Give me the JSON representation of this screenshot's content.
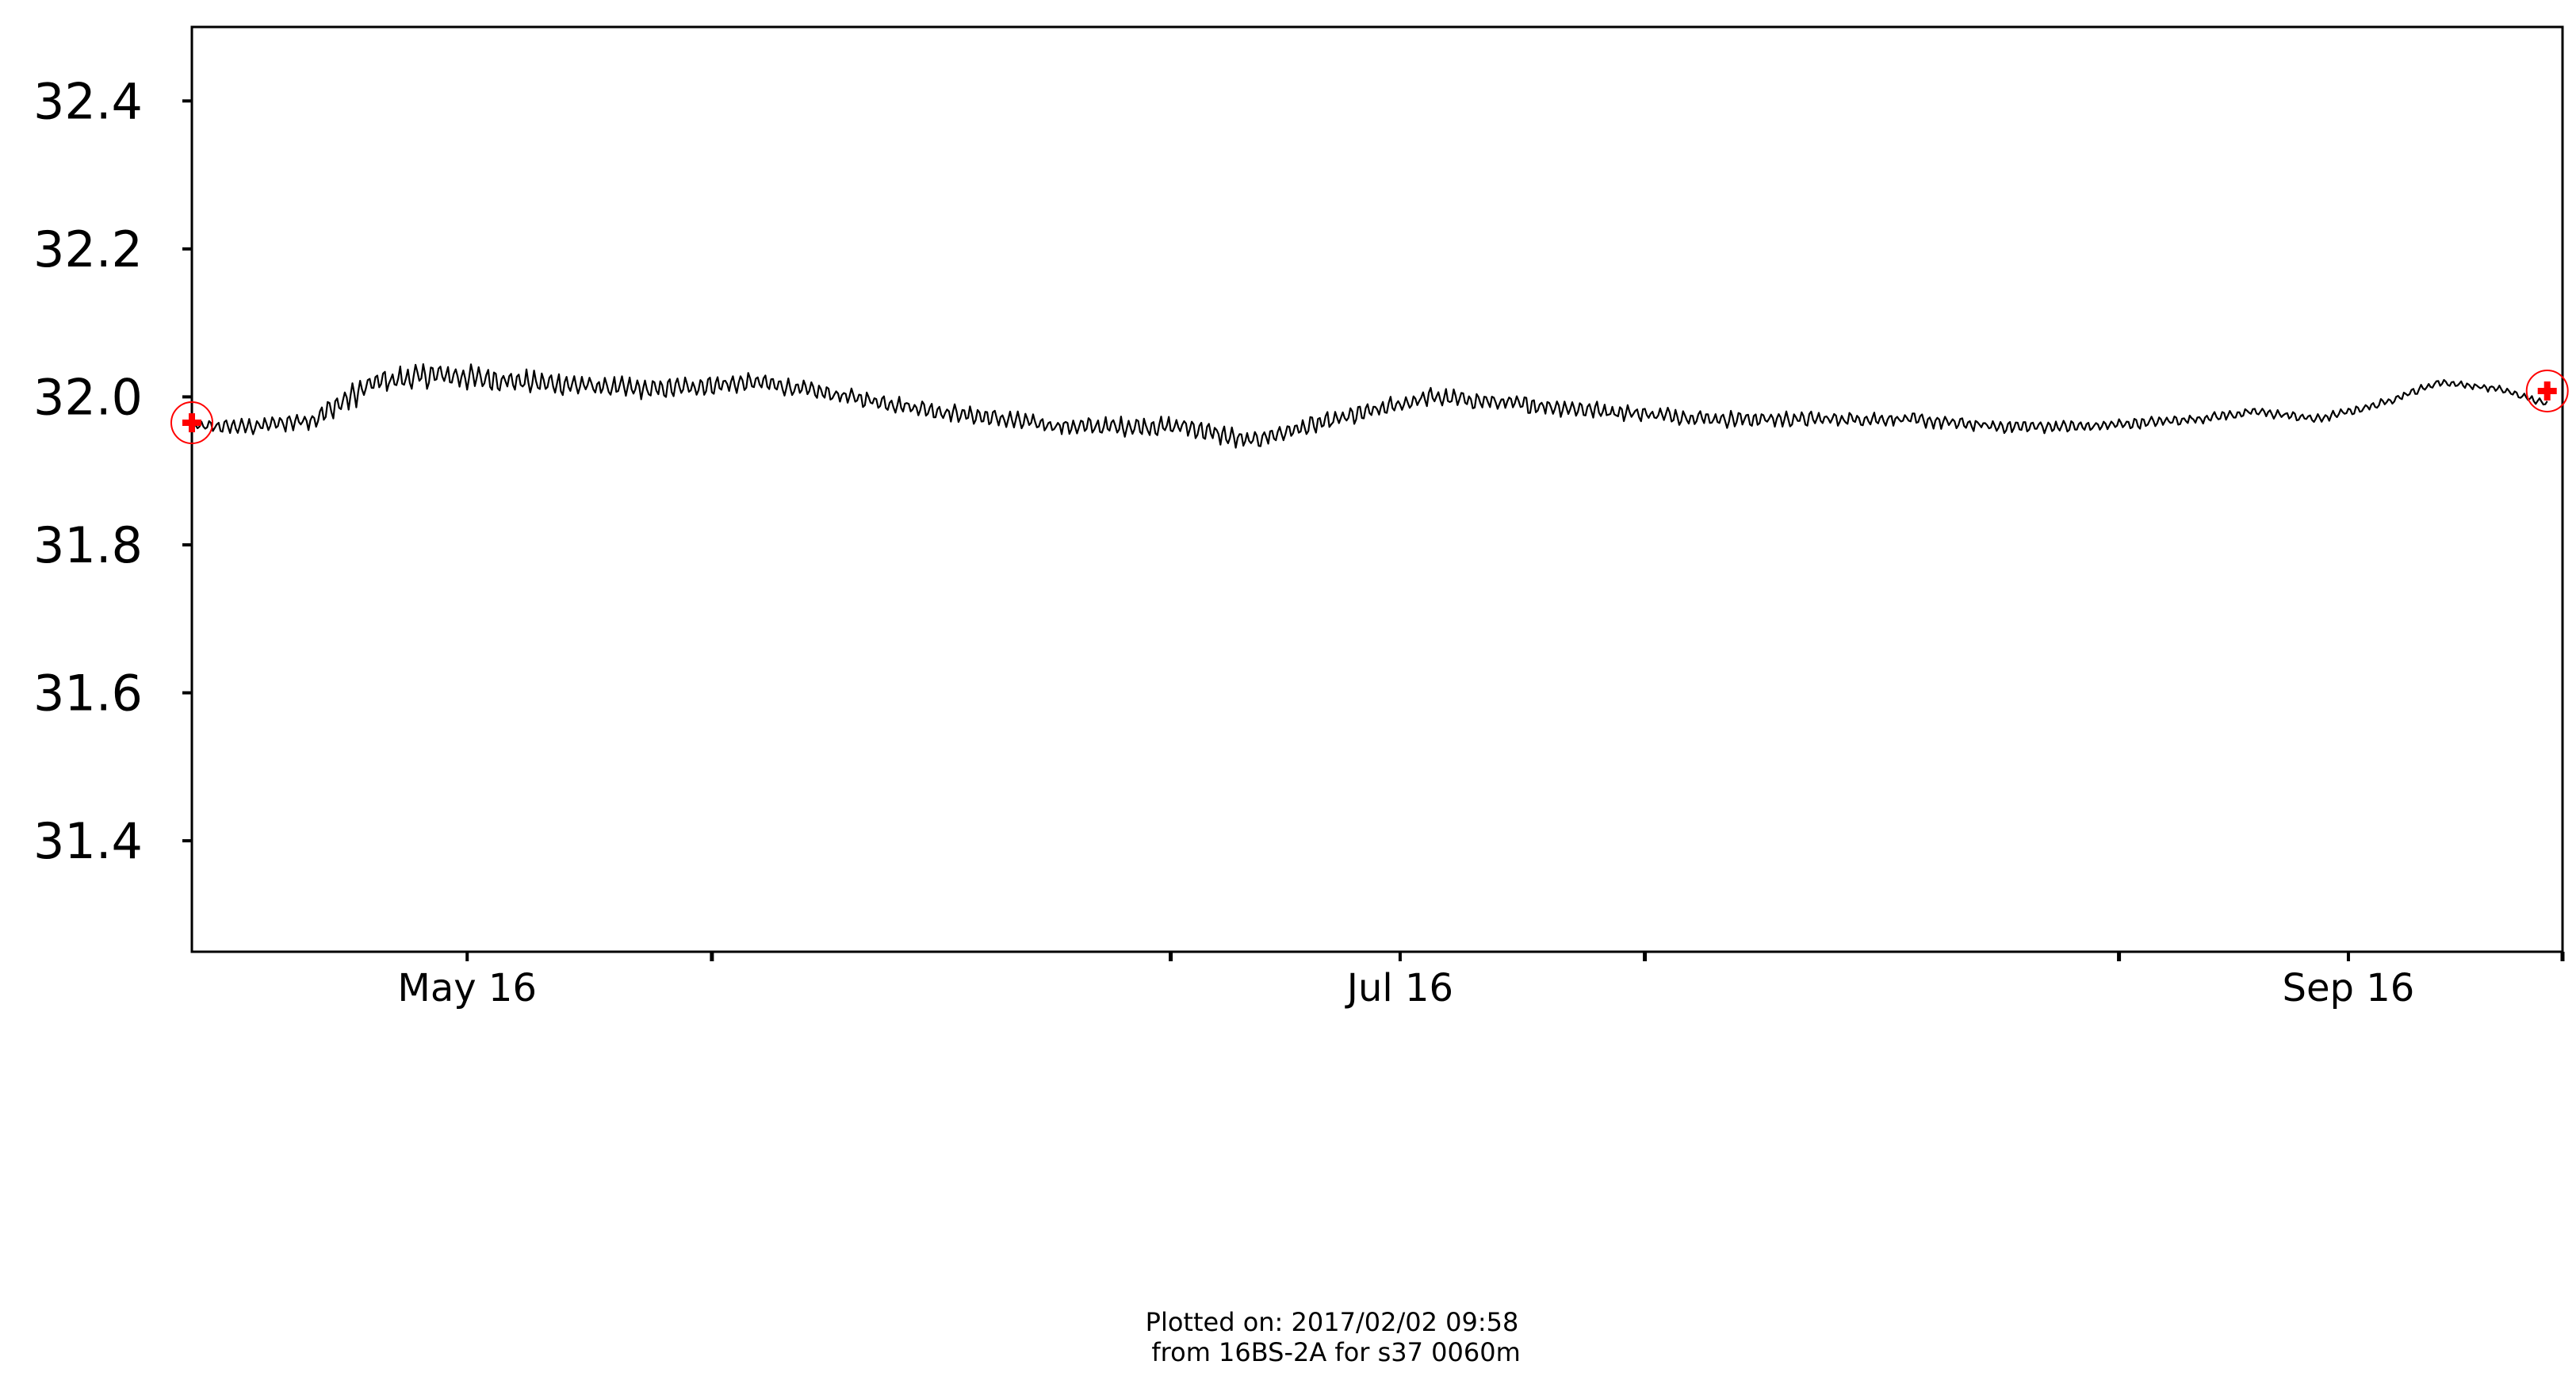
{
  "chart_data": {
    "type": "line",
    "title": "",
    "xlabel": "",
    "ylabel": "",
    "x_start": "2016-04-28",
    "x_end": "2016-09-29",
    "xlim": [
      "2016-04-28",
      "2016-09-30"
    ],
    "ylim": [
      31.25,
      32.5
    ],
    "yticks": [
      31.4,
      31.6,
      31.8,
      32.0,
      32.2,
      32.4
    ],
    "ytick_labels": [
      "31.4",
      "31.6",
      "31.8",
      "32.0",
      "32.2",
      "32.4"
    ],
    "xticks_major": [
      "2016-05-16",
      "2016-07-16",
      "2016-09-16"
    ],
    "xtick_labels": [
      "May 16",
      "Jul 16",
      "Sep 16"
    ],
    "xticks_minor": [
      "2016-06-01",
      "2016-07-01",
      "2016-08-01",
      "2016-09-01",
      "2016-10-01"
    ],
    "grid": false,
    "series": [
      {
        "color": "#000000",
        "anchors": [
          [
            "2016-04-28",
            31.96
          ],
          [
            "2016-05-02",
            31.96
          ],
          [
            "2016-05-06",
            31.97
          ],
          [
            "2016-05-10",
            32.02
          ],
          [
            "2016-05-14",
            32.03
          ],
          [
            "2016-05-20",
            32.02
          ],
          [
            "2016-05-28",
            32.01
          ],
          [
            "2016-06-04",
            32.02
          ],
          [
            "2016-06-10",
            32.0
          ],
          [
            "2016-06-16",
            31.98
          ],
          [
            "2016-06-24",
            31.96
          ],
          [
            "2016-07-02",
            31.96
          ],
          [
            "2016-07-06",
            31.94
          ],
          [
            "2016-07-10",
            31.96
          ],
          [
            "2016-07-14",
            31.98
          ],
          [
            "2016-07-18",
            32.0
          ],
          [
            "2016-07-24",
            31.99
          ],
          [
            "2016-07-30",
            31.98
          ],
          [
            "2016-08-06",
            31.97
          ],
          [
            "2016-08-12",
            31.97
          ],
          [
            "2016-08-18",
            31.97
          ],
          [
            "2016-08-24",
            31.96
          ],
          [
            "2016-08-30",
            31.96
          ],
          [
            "2016-09-06",
            31.97
          ],
          [
            "2016-09-10",
            31.98
          ],
          [
            "2016-09-14",
            31.97
          ],
          [
            "2016-09-18",
            31.99
          ],
          [
            "2016-09-22",
            32.02
          ],
          [
            "2016-09-26",
            32.01
          ],
          [
            "2016-09-29",
            31.99
          ]
        ],
        "noise_amplitude": [
          [
            "2016-04-28",
            0.008
          ],
          [
            "2016-05-10",
            0.02
          ],
          [
            "2016-06-10",
            0.012
          ],
          [
            "2016-07-06",
            0.015
          ],
          [
            "2016-08-10",
            0.012
          ],
          [
            "2016-09-06",
            0.008
          ],
          [
            "2016-09-29",
            0.005
          ]
        ]
      }
    ],
    "markers": [
      {
        "x": "2016-04-28",
        "y": 31.965,
        "color": "#ff0000",
        "symbol": "plus-in-circle"
      },
      {
        "x": "2016-09-29",
        "y": 32.008,
        "color": "#ff0000",
        "symbol": "plus-in-circle"
      }
    ]
  },
  "footer": {
    "line1": "Plotted on: 2017/02/02 09:58",
    "line2": " from 16BS-2A for s37 0060m"
  }
}
